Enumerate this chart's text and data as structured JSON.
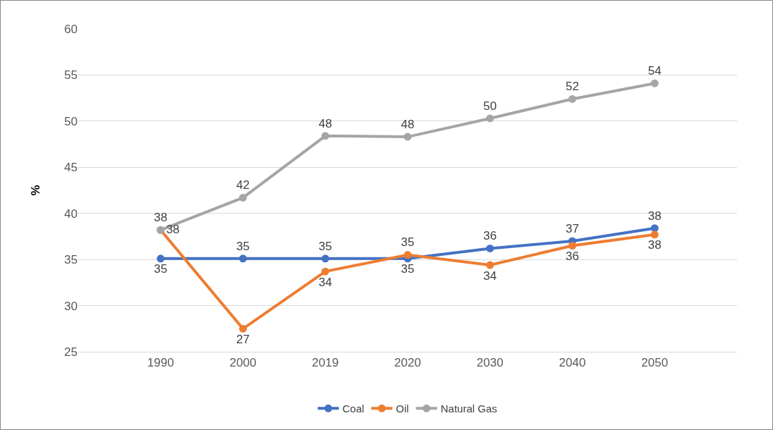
{
  "chart_data": {
    "type": "line",
    "ylabel": "%",
    "categories": [
      "1990",
      "2000",
      "2019",
      "2020",
      "2030",
      "2040",
      "2050"
    ],
    "series": [
      {
        "name": "Coal",
        "color": "#4472c4",
        "values": [
          35.1,
          35.1,
          35.1,
          35.1,
          36.2,
          37.0,
          38.4
        ],
        "value_labels": [
          "35",
          "35",
          "35",
          "35",
          "36",
          "37",
          "38"
        ]
      },
      {
        "name": "Oil",
        "color": "#ed7d31",
        "values": [
          38.2,
          27.5,
          33.7,
          35.5,
          34.4,
          36.5,
          37.7
        ],
        "value_labels": [
          "38",
          "27",
          "34",
          "35",
          "34",
          "36",
          "38"
        ]
      },
      {
        "name": "Natural Gas",
        "color": "#a5a5a5",
        "values": [
          38.2,
          41.7,
          48.4,
          48.3,
          50.3,
          52.4,
          54.1
        ],
        "value_labels": [
          "38",
          "42",
          "48",
          "48",
          "50",
          "52",
          "54"
        ]
      }
    ],
    "ylim": [
      25,
      60
    ],
    "yticks": [
      25,
      30,
      35,
      40,
      45,
      50,
      55,
      60
    ],
    "grid": "y",
    "legend": "bottom",
    "marker": "circle",
    "line_style": "solid"
  }
}
